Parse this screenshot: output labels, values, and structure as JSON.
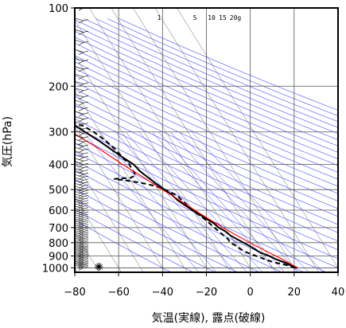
{
  "chart_data": {
    "type": "line",
    "subtype": "skew-T log-P sounding (emagram)",
    "title": "",
    "xlabel": "気温(実線), 露点(破線)",
    "ylabel": "気圧(hPa)",
    "xlim": [
      -80,
      40
    ],
    "ylim": [
      1050,
      100
    ],
    "y_scale": "log",
    "skew_deg_per_decade_log10p": 73.4,
    "x_ticks": [
      -80,
      -60,
      -40,
      -20,
      0,
      20,
      40
    ],
    "x_tick_labels": [
      "−80",
      "−60",
      "−40",
      "−20",
      "0",
      "20",
      "40"
    ],
    "y_ticks": [
      100,
      200,
      300,
      400,
      500,
      600,
      700,
      800,
      900,
      1000
    ],
    "y_tick_labels": [
      "100",
      "200",
      "300",
      "400",
      "500",
      "600",
      "700",
      "800",
      "900",
      "1000"
    ],
    "mixing_ratio_labels": [
      "1",
      "5",
      "10",
      "15",
      "20g"
    ],
    "series": [
      {
        "role": "temperature",
        "color": "#000000",
        "style": "solid",
        "points": [
          [
            1000,
            21.5
          ],
          [
            975,
            19
          ],
          [
            950,
            17
          ],
          [
            925,
            14
          ],
          [
            900,
            12
          ],
          [
            875,
            9
          ],
          [
            850,
            7.5
          ],
          [
            825,
            6
          ],
          [
            800,
            4
          ],
          [
            775,
            2
          ],
          [
            750,
            0
          ],
          [
            725,
            -1
          ],
          [
            700,
            -3
          ],
          [
            675,
            -4
          ],
          [
            650,
            -6
          ],
          [
            625,
            -8
          ],
          [
            600,
            -10
          ],
          [
            575,
            -12
          ],
          [
            550,
            -14
          ],
          [
            525,
            -15
          ],
          [
            500,
            -17
          ],
          [
            475,
            -19
          ],
          [
            450,
            -21
          ],
          [
            425,
            -23
          ],
          [
            400,
            -24
          ],
          [
            375,
            -27
          ],
          [
            350,
            -30
          ],
          [
            325,
            -33
          ],
          [
            300,
            -37
          ],
          [
            275,
            -41
          ],
          [
            250,
            -45
          ],
          [
            225,
            -50
          ],
          [
            200,
            -54
          ],
          [
            185,
            -58
          ],
          [
            175,
            -61
          ],
          [
            165,
            -61
          ],
          [
            155,
            -59
          ],
          [
            145,
            -58
          ],
          [
            135,
            -58
          ],
          [
            125,
            -59
          ],
          [
            115,
            -60
          ],
          [
            105,
            -61
          ],
          [
            100,
            -60
          ]
        ]
      },
      {
        "role": "dewpoint",
        "color": "#000000",
        "style": "dashed",
        "points": [
          [
            1000,
            20.5
          ],
          [
            975,
            17
          ],
          [
            950,
            12
          ],
          [
            925,
            9
          ],
          [
            900,
            6
          ],
          [
            875,
            3
          ],
          [
            850,
            1
          ],
          [
            825,
            0
          ],
          [
            800,
            -2
          ],
          [
            775,
            -2
          ],
          [
            750,
            -3
          ],
          [
            725,
            -4
          ],
          [
            700,
            -5
          ],
          [
            650,
            -7
          ],
          [
            600,
            -10
          ],
          [
            550,
            -12
          ],
          [
            525,
            -13
          ],
          [
            500,
            -17
          ],
          [
            485,
            -20
          ],
          [
            470,
            -26
          ],
          [
            460,
            -33
          ],
          [
            455,
            -37
          ],
          [
            450,
            -29
          ],
          [
            440,
            -26
          ],
          [
            400,
            -26
          ],
          [
            375,
            -27
          ],
          [
            350,
            -28
          ],
          [
            325,
            -30
          ],
          [
            300,
            -33
          ],
          [
            285,
            -36
          ],
          [
            275,
            -40
          ],
          [
            265,
            -50
          ],
          [
            260,
            -62
          ],
          [
            258,
            -80
          ]
        ]
      },
      {
        "role": "parcel ascent",
        "color": "#ff0000",
        "style": "solid",
        "points": [
          [
            1000,
            21.5
          ],
          [
            975,
            20
          ],
          [
            950,
            18.5
          ],
          [
            925,
            17
          ],
          [
            900,
            15
          ],
          [
            850,
            11
          ],
          [
            800,
            7
          ],
          [
            750,
            3
          ],
          [
            700,
            -1
          ],
          [
            650,
            -5
          ],
          [
            600,
            -9
          ],
          [
            550,
            -13
          ],
          [
            500,
            -18
          ],
          [
            450,
            -23
          ],
          [
            400,
            -29
          ],
          [
            350,
            -35
          ],
          [
            300,
            -43
          ],
          [
            250,
            -52
          ],
          [
            200,
            -63
          ],
          [
            170,
            -72
          ],
          [
            150,
            -78
          ]
        ]
      }
    ],
    "wind_barbs": "column of wind barbs along the left edge (≈ −76 °C column) from 1000 to 100 hPa",
    "grid": true,
    "colors": {
      "background": "#ffffff",
      "isotherm_isobar_grid": "#555555",
      "dry_adiabat": "#3333ff",
      "mixing_ratio": "#3333ff",
      "parcel": "#ff0000"
    }
  }
}
